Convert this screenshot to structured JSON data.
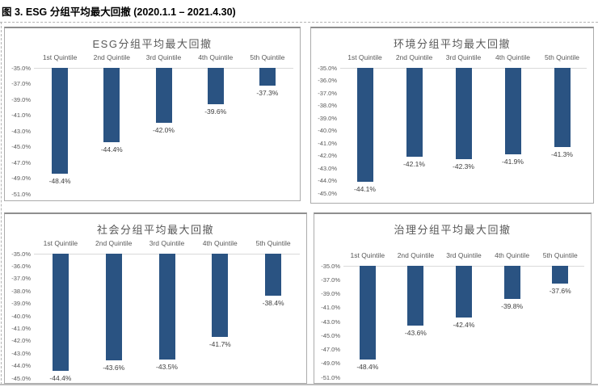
{
  "figure_title": "图 3. ESG 分组平均最大回撤 (2020.1.1 – 2021.4.30)",
  "colors": {
    "bar": "#2a5382",
    "panel_border": "#ababab",
    "panel_border_top": "#8f8f8f",
    "axis_line": "#d9d9d9",
    "label_gray": "#595959",
    "data_label": "#404040",
    "dashed_border": "#b3b3b3",
    "bottom_rule": "#bdbdbd"
  },
  "chart_data": [
    {
      "type": "bar",
      "title": "ESG分组平均最大回撤",
      "categories": [
        "1st Quintile",
        "2nd Quintile",
        "3rd Quintile",
        "4th Quintile",
        "5th Quintile"
      ],
      "values": [
        -48.4,
        -44.4,
        -42.0,
        -39.6,
        -37.3
      ],
      "labels": [
        "-48.4%",
        "-44.4%",
        "-42.0%",
        "-39.6%",
        "-37.3%"
      ],
      "ylim": [
        -51.0,
        -35.0
      ],
      "tick_step": 2.0,
      "yticks": [
        "-35.0%",
        "-37.0%",
        "-39.0%",
        "-41.0%",
        "-43.0%",
        "-45.0%",
        "-47.0%",
        "-49.0%",
        "-51.0%"
      ],
      "grid": false,
      "legend": "none"
    },
    {
      "type": "bar",
      "title": "环境分组平均最大回撤",
      "categories": [
        "1st Quintile",
        "2nd Quintile",
        "3rd Quintile",
        "4th Quintile",
        "5th Quintile"
      ],
      "values": [
        -44.1,
        -42.1,
        -42.3,
        -41.9,
        -41.3
      ],
      "labels": [
        "-44.1%",
        "-42.1%",
        "-42.3%",
        "-41.9%",
        "-41.3%"
      ],
      "ylim": [
        -45.0,
        -35.0
      ],
      "tick_step": 1.0,
      "yticks": [
        "-35.0%",
        "-36.0%",
        "-37.0%",
        "-38.0%",
        "-39.0%",
        "-40.0%",
        "-41.0%",
        "-42.0%",
        "-43.0%",
        "-44.0%",
        "-45.0%"
      ],
      "grid": false,
      "legend": "none"
    },
    {
      "type": "bar",
      "title": "社会分组平均最大回撤",
      "categories": [
        "1st Quintile",
        "2nd Quintile",
        "3rd Quintile",
        "4th Quintile",
        "5th Quintile"
      ],
      "values": [
        -44.4,
        -43.6,
        -43.5,
        -41.7,
        -38.4
      ],
      "labels": [
        "-44.4%",
        "-43.6%",
        "-43.5%",
        "-41.7%",
        "-38.4%"
      ],
      "ylim": [
        -45.0,
        -35.0
      ],
      "tick_step": 1.0,
      "yticks": [
        "-35.0%",
        "-36.0%",
        "-37.0%",
        "-38.0%",
        "-39.0%",
        "-40.0%",
        "-41.0%",
        "-42.0%",
        "-43.0%",
        "-44.0%",
        "-45.0%"
      ],
      "grid": false,
      "legend": "none"
    },
    {
      "type": "bar",
      "title": "治理分组平均最大回撤",
      "categories": [
        "1st Quintile",
        "2nd Quintile",
        "3rd Quintile",
        "4th Quintile",
        "5th Quintile"
      ],
      "values": [
        -48.4,
        -43.6,
        -42.4,
        -39.8,
        -37.6
      ],
      "labels": [
        "-48.4%",
        "-43.6%",
        "-42.4%",
        "-39.8%",
        "-37.6%"
      ],
      "ylim": [
        -51.0,
        -35.0
      ],
      "tick_step": 2.0,
      "yticks": [
        "-35.0%",
        "-37.0%",
        "-39.0%",
        "-41.0%",
        "-43.0%",
        "-45.0%",
        "-47.0%",
        "-49.0%",
        "-51.0%"
      ],
      "grid": false,
      "legend": "none"
    }
  ]
}
